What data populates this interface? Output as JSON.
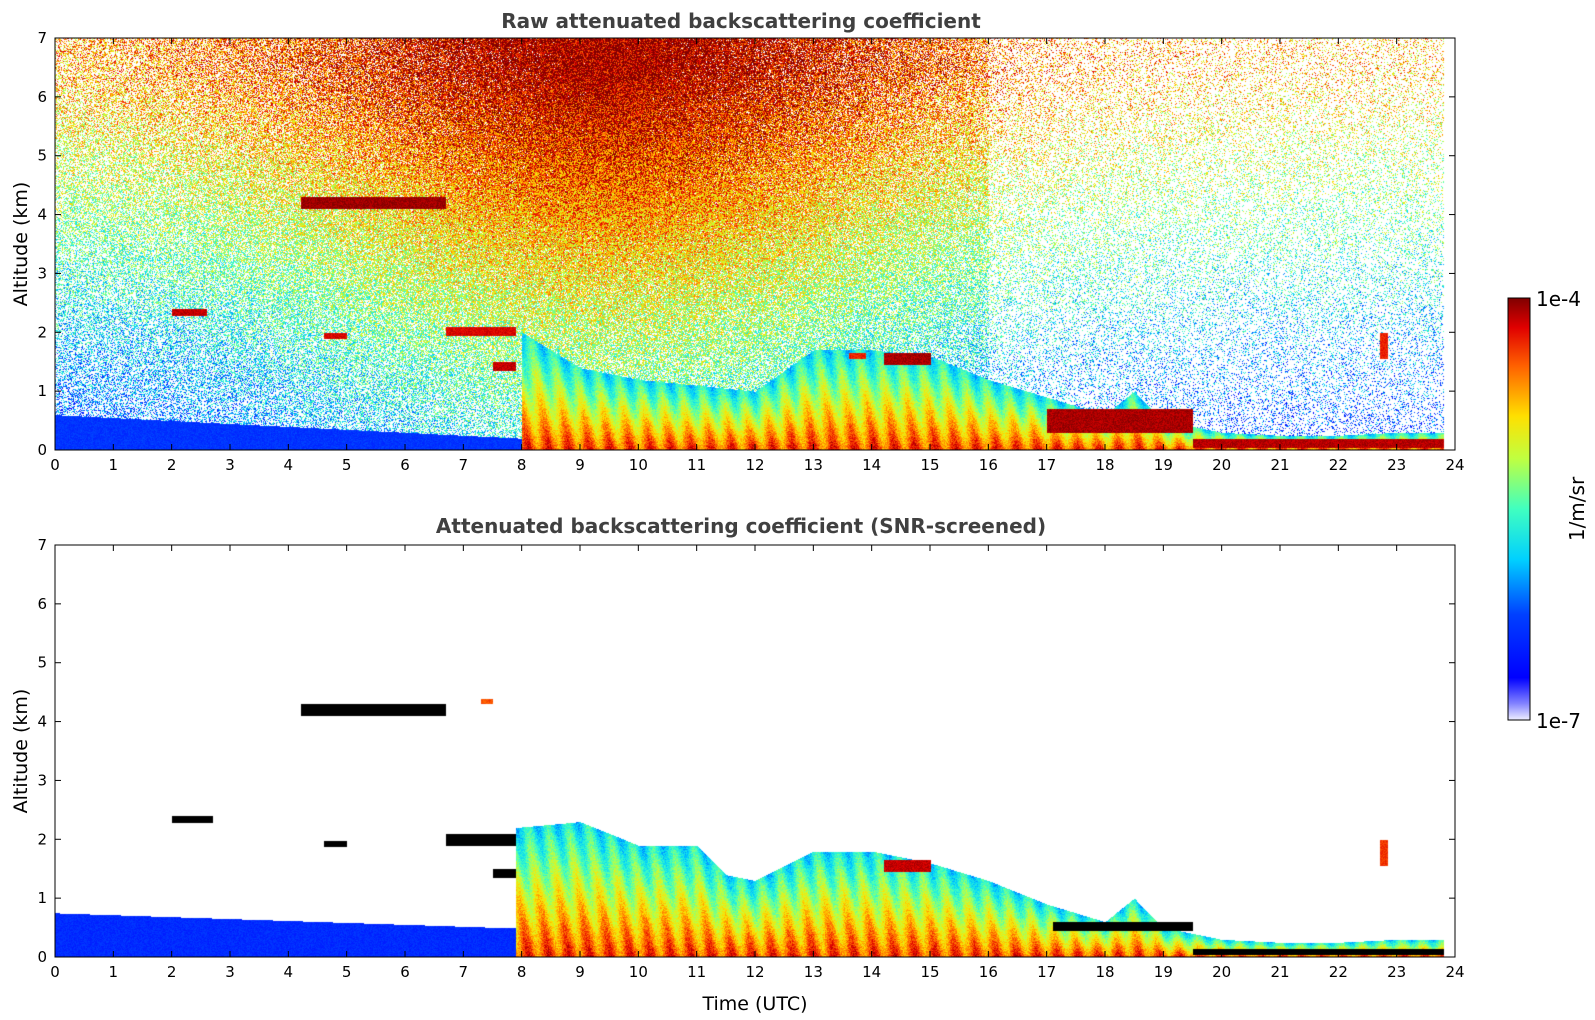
{
  "chart_data": [
    {
      "type": "heatmap",
      "title": "Raw attenuated backscattering coefficient",
      "xlabel": "",
      "ylabel": "Altitude (km)",
      "xlim": [
        0,
        24
      ],
      "ylim": [
        0,
        7
      ],
      "x_ticks": [
        "0",
        "1",
        "2",
        "3",
        "4",
        "5",
        "6",
        "7",
        "8",
        "9",
        "10",
        "11",
        "12",
        "13",
        "14",
        "15",
        "16",
        "17",
        "18",
        "19",
        "20",
        "21",
        "22",
        "23",
        "24"
      ],
      "y_ticks": [
        "0",
        "1",
        "2",
        "3",
        "4",
        "5",
        "6",
        "7"
      ],
      "grid": false,
      "background_noise": "dense, increasing in strength with altitude toward midday",
      "features": [
        {
          "kind": "boundary_layer",
          "time": [
            0,
            12
          ],
          "alt_top": [
            0.6,
            0.0
          ],
          "level": 0.22
        },
        {
          "kind": "convective_layer",
          "time_top": [
            [
              8,
              2.0
            ],
            [
              9,
              1.4
            ],
            [
              10,
              1.2
            ],
            [
              11,
              1.1
            ],
            [
              12,
              1.0
            ],
            [
              13,
              1.7
            ],
            [
              14,
              1.7
            ],
            [
              15,
              1.6
            ],
            [
              16,
              1.2
            ],
            [
              17,
              0.9
            ],
            [
              18,
              0.6
            ],
            [
              18.5,
              1.0
            ],
            [
              19,
              0.5
            ],
            [
              20,
              0.3
            ],
            [
              21,
              0.25
            ],
            [
              22,
              0.25
            ],
            [
              23,
              0.3
            ],
            [
              23.8,
              0.3
            ]
          ],
          "level": 0.7
        },
        {
          "kind": "cloud",
          "time": [
            4.2,
            6.7
          ],
          "alt": [
            4.1,
            4.3
          ],
          "level": 0.98
        },
        {
          "kind": "cloud",
          "time": [
            2.0,
            2.6
          ],
          "alt": [
            2.28,
            2.4
          ],
          "level": 0.95
        },
        {
          "kind": "cloud",
          "time": [
            4.6,
            5.0
          ],
          "alt": [
            1.9,
            2.0
          ],
          "level": 0.93
        },
        {
          "kind": "cloud",
          "time": [
            6.7,
            7.9
          ],
          "alt": [
            1.95,
            2.1
          ],
          "level": 0.93
        },
        {
          "kind": "cloud",
          "time": [
            7.5,
            7.9
          ],
          "alt": [
            1.35,
            1.5
          ],
          "level": 0.95
        },
        {
          "kind": "cloud",
          "time": [
            13.6,
            13.9
          ],
          "alt": [
            1.55,
            1.65
          ],
          "level": 0.9
        },
        {
          "kind": "cloud",
          "time": [
            14.2,
            15.0
          ],
          "alt": [
            1.45,
            1.65
          ],
          "level": 0.97
        },
        {
          "kind": "cloud",
          "time": [
            17.0,
            19.5
          ],
          "alt": [
            0.3,
            0.7
          ],
          "level": 0.97
        },
        {
          "kind": "cloud",
          "time": [
            19.5,
            23.8
          ],
          "alt": [
            0.05,
            0.2
          ],
          "level": 0.96
        },
        {
          "kind": "cloud",
          "time": [
            22.7,
            22.85
          ],
          "alt": [
            1.55,
            2.0
          ],
          "level": 0.9
        }
      ]
    },
    {
      "type": "heatmap",
      "title": "Attenuated backscattering coefficient (SNR-screened)",
      "xlabel": "Time (UTC)",
      "ylabel": "Altitude (km)",
      "xlim": [
        0,
        24
      ],
      "ylim": [
        0,
        7
      ],
      "x_ticks": [
        "0",
        "1",
        "2",
        "3",
        "4",
        "5",
        "6",
        "7",
        "8",
        "9",
        "10",
        "11",
        "12",
        "13",
        "14",
        "15",
        "16",
        "17",
        "18",
        "19",
        "20",
        "21",
        "22",
        "23",
        "24"
      ],
      "y_ticks": [
        "0",
        "1",
        "2",
        "3",
        "4",
        "5",
        "6",
        "7"
      ],
      "grid": false,
      "background_noise": "none (screened)",
      "features": [
        {
          "kind": "boundary_layer",
          "time": [
            0,
            9.2
          ],
          "alt_top": [
            0.75,
            0.45
          ],
          "level": 0.2
        },
        {
          "kind": "convective_layer",
          "time_top": [
            [
              7.9,
              2.2
            ],
            [
              9,
              2.3
            ],
            [
              10,
              1.9
            ],
            [
              11,
              1.9
            ],
            [
              11.5,
              1.4
            ],
            [
              12,
              1.3
            ],
            [
              13,
              1.8
            ],
            [
              14,
              1.8
            ],
            [
              15,
              1.6
            ],
            [
              16,
              1.3
            ],
            [
              17,
              0.9
            ],
            [
              18,
              0.6
            ],
            [
              18.5,
              1.0
            ],
            [
              19,
              0.5
            ],
            [
              20,
              0.3
            ],
            [
              21,
              0.25
            ],
            [
              22,
              0.25
            ],
            [
              23,
              0.3
            ],
            [
              23.8,
              0.3
            ]
          ],
          "level": 0.7
        },
        {
          "kind": "screened_cloud",
          "time": [
            4.2,
            6.7
          ],
          "alt": [
            4.1,
            4.3
          ],
          "color": "#000000"
        },
        {
          "kind": "screened_cloud",
          "time": [
            2.0,
            2.7
          ],
          "alt": [
            2.28,
            2.4
          ],
          "color": "#000000"
        },
        {
          "kind": "screened_cloud",
          "time": [
            4.6,
            5.0
          ],
          "alt": [
            1.88,
            1.98
          ],
          "color": "#000000"
        },
        {
          "kind": "screened_cloud",
          "time": [
            6.7,
            7.9
          ],
          "alt": [
            1.9,
            2.1
          ],
          "color": "#000000"
        },
        {
          "kind": "screened_cloud",
          "time": [
            7.5,
            7.9
          ],
          "alt": [
            1.35,
            1.5
          ],
          "color": "#000000"
        },
        {
          "kind": "screened_cloud",
          "time": [
            17.1,
            19.5
          ],
          "alt": [
            0.45,
            0.6
          ],
          "color": "#000000"
        },
        {
          "kind": "screened_cloud",
          "time": [
            19.5,
            23.8
          ],
          "alt": [
            0.05,
            0.15
          ],
          "color": "#000000"
        },
        {
          "kind": "cloud",
          "time": [
            7.3,
            7.5
          ],
          "alt": [
            4.3,
            4.4
          ],
          "level": 0.85
        },
        {
          "kind": "cloud",
          "time": [
            14.2,
            15.0
          ],
          "alt": [
            1.45,
            1.65
          ],
          "level": 0.95
        },
        {
          "kind": "cloud",
          "time": [
            22.7,
            22.85
          ],
          "alt": [
            1.55,
            2.0
          ],
          "level": 0.88
        }
      ]
    }
  ],
  "colorbar": {
    "label": "1/m/sr",
    "min_label": "1e-7",
    "max_label": "1e-4",
    "colormap": "jet",
    "scale": "log"
  }
}
